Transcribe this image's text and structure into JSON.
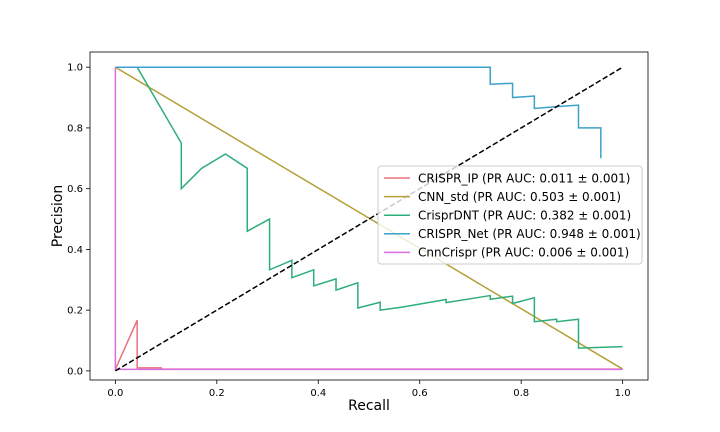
{
  "chart_data": {
    "type": "line",
    "title": "",
    "xlabel": "Recall",
    "ylabel": "Precision",
    "xlim": [
      -0.05,
      1.05
    ],
    "ylim": [
      -0.03,
      1.05
    ],
    "xticks": [
      0.0,
      0.2,
      0.4,
      0.6,
      0.8,
      1.0
    ],
    "xtick_labels": [
      "0.0",
      "0.2",
      "0.4",
      "0.6",
      "0.8",
      "1.0"
    ],
    "yticks": [
      0.0,
      0.2,
      0.4,
      0.6,
      0.8,
      1.0
    ],
    "ytick_labels": [
      "0.0",
      "0.2",
      "0.4",
      "0.6",
      "0.8",
      "1.0"
    ],
    "grid": false,
    "legend_position": "center-right",
    "series": [
      {
        "name": "CRISPR_IP (PR AUC: 0.011 ± 0.001)",
        "color": "#e8717f",
        "x": [
          0.0,
          0.043,
          0.043,
          0.09,
          0.09,
          1.0
        ],
        "y": [
          0.005,
          0.167,
          0.01,
          0.01,
          0.006,
          0.006
        ]
      },
      {
        "name": "CNN_std (PR AUC: 0.503 ± 0.001)",
        "color": "#b5a03a",
        "x": [
          0.0,
          1.0
        ],
        "y": [
          1.0,
          0.006
        ]
      },
      {
        "name": "CrisprDNT (PR AUC: 0.382 ± 0.001)",
        "color": "#2eae7a",
        "x": [
          0.0,
          0.043,
          0.13,
          0.13,
          0.17,
          0.217,
          0.26,
          0.26,
          0.304,
          0.304,
          0.348,
          0.348,
          0.391,
          0.391,
          0.435,
          0.435,
          0.478,
          0.478,
          0.522,
          0.522,
          0.565,
          0.652,
          0.652,
          0.739,
          0.739,
          0.783,
          0.783,
          0.826,
          0.826,
          0.87,
          0.87,
          0.913,
          0.913,
          1.0
        ],
        "y": [
          1.0,
          1.0,
          0.75,
          0.6,
          0.667,
          0.714,
          0.667,
          0.46,
          0.5,
          0.333,
          0.364,
          0.307,
          0.333,
          0.28,
          0.303,
          0.266,
          0.29,
          0.207,
          0.226,
          0.2,
          0.21,
          0.235,
          0.225,
          0.248,
          0.236,
          0.246,
          0.222,
          0.241,
          0.162,
          0.17,
          0.162,
          0.17,
          0.075,
          0.08
        ]
      },
      {
        "name": "CRISPR_Net (PR AUC: 0.948 ± 0.001)",
        "color": "#3ba2c9",
        "x": [
          0.0,
          0.739,
          0.739,
          0.783,
          0.783,
          0.826,
          0.826,
          0.87,
          0.87,
          0.913,
          0.913,
          0.957,
          0.957
        ],
        "y": [
          1.0,
          1.0,
          0.944,
          0.947,
          0.9,
          0.905,
          0.864,
          0.87,
          0.87,
          0.875,
          0.8,
          0.8,
          0.7
        ]
      },
      {
        "name": "CnnCrispr (PR AUC: 0.006 ± 0.001)",
        "color": "#d96ee0",
        "x": [
          0.0,
          0.0,
          1.0
        ],
        "y": [
          1.0,
          0.005,
          0.005
        ]
      }
    ],
    "reference_line": {
      "style": "dashed",
      "color": "#000000",
      "x": [
        0.0,
        1.0
      ],
      "y": [
        0.0,
        1.0
      ]
    }
  }
}
